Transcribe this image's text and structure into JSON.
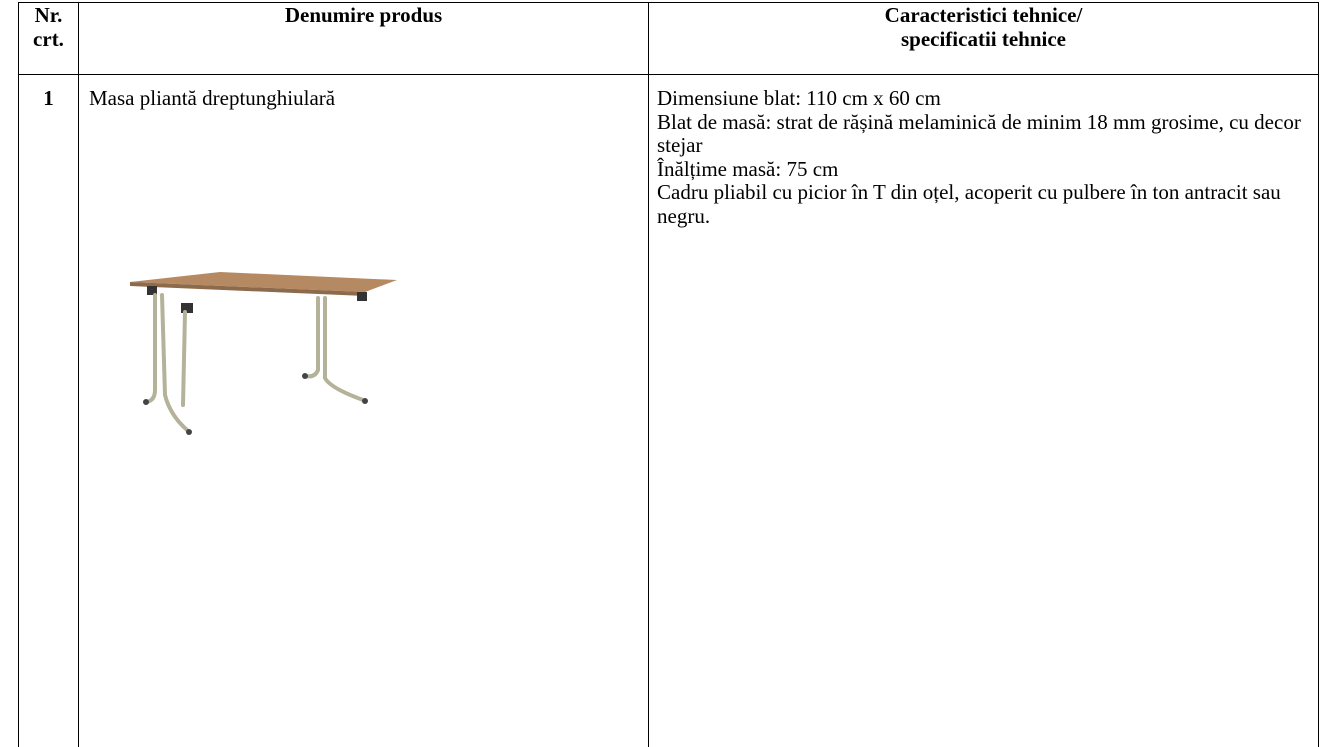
{
  "table": {
    "header": [
      {
        "lines": [
          "Nr.",
          "crt."
        ]
      },
      {
        "lines": [
          "Denumire produs"
        ]
      },
      {
        "lines": [
          "Caracteristici tehnice/",
          "specificatii tehnice"
        ]
      }
    ],
    "rows": [
      {
        "number": "1",
        "name": "Masa pliantă dreptunghiulară",
        "specs": [
          "Dimensiune blat: 110 cm x 60 cm",
          "Blat de masă: strat de rășină melaminică de minim 18 mm grosime, cu decor stejar",
          "Înălțime masă: 75 cm",
          "Cadru pliabil cu picior în T din oțel, acoperit cu pulbere în ton antracit sau negru."
        ]
      }
    ]
  }
}
